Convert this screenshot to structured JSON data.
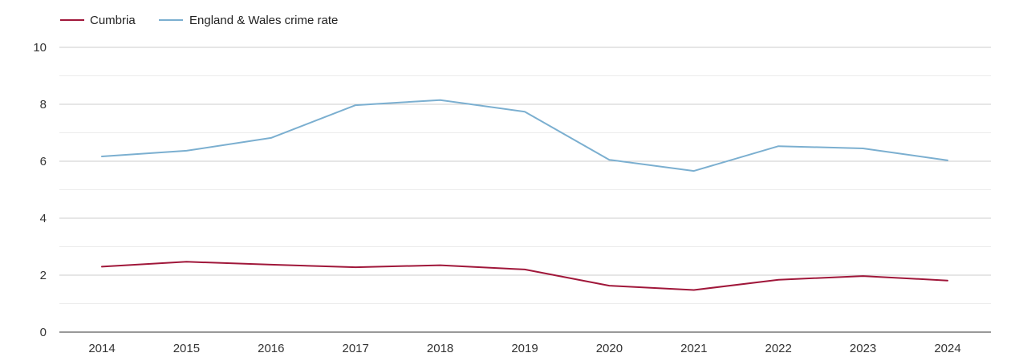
{
  "chart_data": {
    "type": "line",
    "title": "",
    "xlabel": "",
    "ylabel": "",
    "categories": [
      "2014",
      "2015",
      "2016",
      "2017",
      "2018",
      "2019",
      "2020",
      "2021",
      "2022",
      "2023",
      "2024"
    ],
    "ylim": [
      0,
      10
    ],
    "yticks": [
      "0",
      "2",
      "4",
      "6",
      "8",
      "10"
    ],
    "grid": true,
    "legend_position": "top-left",
    "series": [
      {
        "name": "Cumbria",
        "color": "#a0173a",
        "values": [
          2.3,
          2.47,
          2.37,
          2.28,
          2.35,
          2.2,
          1.63,
          1.48,
          1.84,
          1.97,
          1.81
        ]
      },
      {
        "name": "England & Wales crime rate",
        "color": "#7bafd0",
        "values": [
          6.17,
          6.37,
          6.82,
          7.97,
          8.15,
          7.74,
          6.05,
          5.66,
          6.53,
          6.45,
          6.03
        ]
      }
    ]
  }
}
